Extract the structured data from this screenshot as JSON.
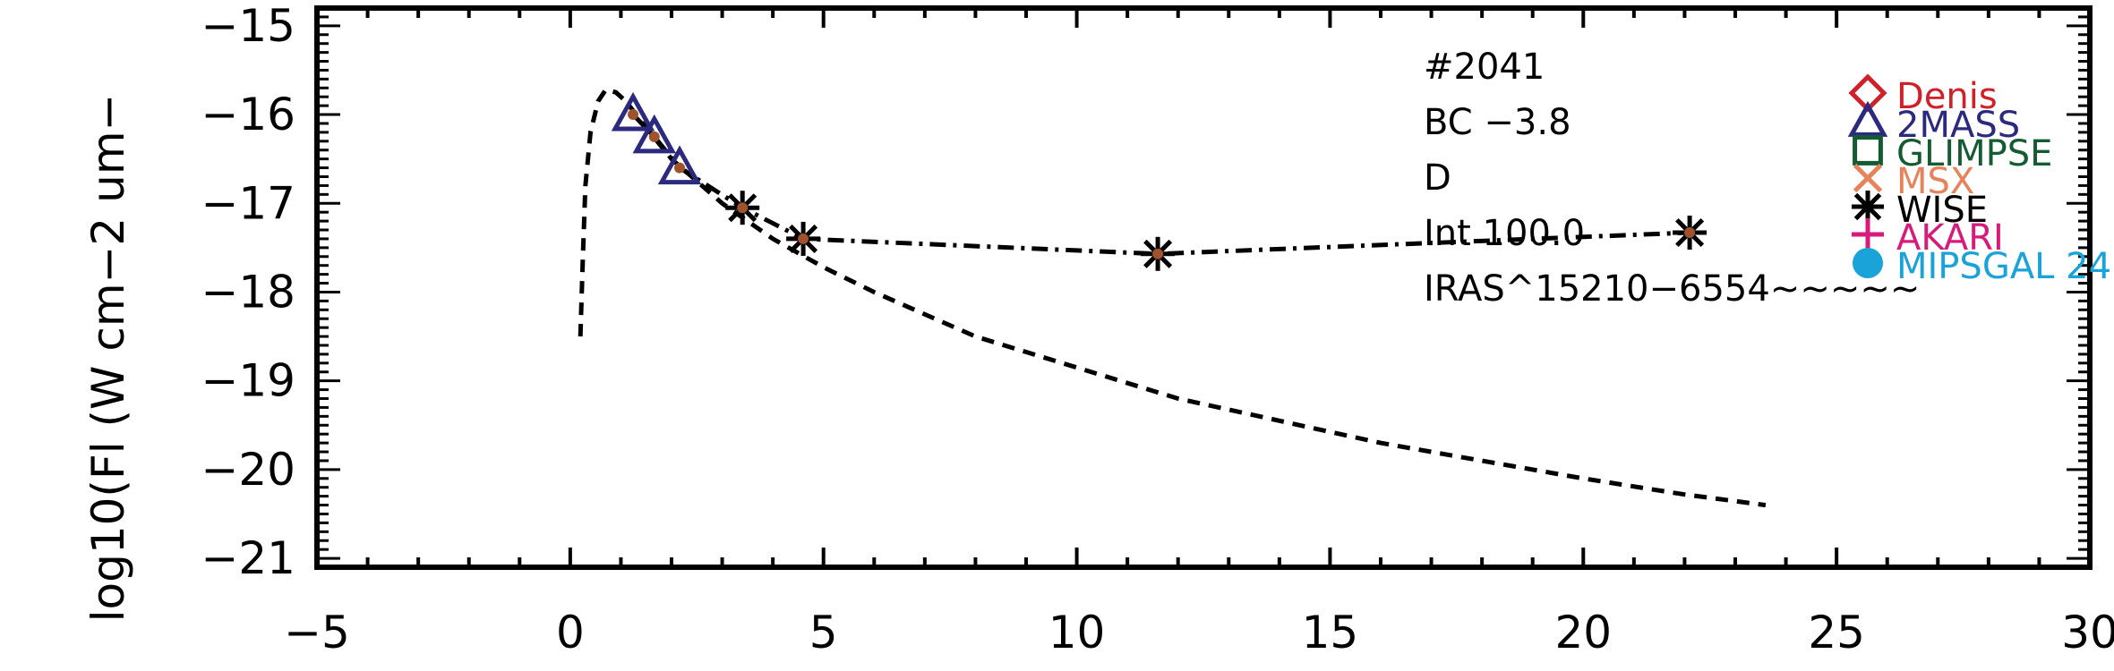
{
  "chart_data": {
    "type": "scatter",
    "ylabel": "log10(Fl (W cm−2 um−",
    "xlim": [
      -5,
      30
    ],
    "ylim": [
      -21.1,
      -14.8
    ],
    "x_ticks": [
      -5,
      0,
      5,
      10,
      15,
      20,
      25,
      30
    ],
    "x_tick_labels": [
      "−5",
      "0",
      "5",
      "10",
      "15",
      "20",
      "25",
      "30"
    ],
    "y_ticks": [
      -21,
      -20,
      -19,
      -18,
      -17,
      -16,
      -15
    ],
    "y_tick_labels": [
      "−21",
      "−20",
      "−19",
      "−18",
      "−17",
      "−16",
      "−15"
    ],
    "annotations": [
      "#2041",
      "BC −3.8",
      "D",
      "Int 100.0",
      "IRAS^15210−6554~~~~~"
    ],
    "legend": [
      {
        "name": "Denis",
        "symbol": "diamond",
        "color": "#d0202a"
      },
      {
        "name": "2MASS",
        "symbol": "triangle",
        "color": "#2b2a7e"
      },
      {
        "name": "GLIMPSE",
        "symbol": "square",
        "color": "#145a32"
      },
      {
        "name": "MSX",
        "symbol": "x",
        "color": "#e8825a"
      },
      {
        "name": "WISE",
        "symbol": "asterisk",
        "color": "#000000"
      },
      {
        "name": "AKARI",
        "symbol": "plus",
        "color": "#d81b7a"
      },
      {
        "name": "MIPSGAL 24",
        "symbol": "circle",
        "color": "#1aa3d9"
      }
    ],
    "series": [
      {
        "name": "2MASS",
        "symbol": "triangle",
        "color": "#2b2a7e",
        "x": [
          1.24,
          1.66,
          2.16
        ],
        "y": [
          -16.0,
          -16.25,
          -16.6
        ]
      },
      {
        "name": "WISE",
        "symbol": "asterisk",
        "color": "#000000",
        "x": [
          3.4,
          4.6,
          11.6,
          22.1
        ],
        "y": [
          -17.05,
          -17.4,
          -17.57,
          -17.33
        ]
      },
      {
        "symbol": "dot",
        "color": "#a0522d",
        "x": [
          1.24,
          1.66,
          2.16,
          3.4,
          4.6,
          11.6,
          22.1
        ],
        "y": [
          -16.0,
          -16.25,
          -16.6,
          -17.05,
          -17.4,
          -17.57,
          -17.33
        ]
      },
      {
        "style": "dash-dot",
        "color": "#000000",
        "x": [
          1.24,
          1.66,
          2.16,
          3.4,
          4.6,
          11.6,
          22.1
        ],
        "y": [
          -16.0,
          -16.25,
          -16.6,
          -17.05,
          -17.4,
          -17.57,
          -17.33
        ]
      },
      {
        "style": "dashed",
        "color": "#000000",
        "x": [
          0.2,
          0.25,
          0.3,
          0.4,
          0.55,
          0.7,
          0.9,
          1.1,
          1.5,
          2.0,
          3.0,
          4.0,
          5.0,
          6.0,
          8.0,
          10.0,
          12.0,
          14.0,
          16.0,
          18.0,
          20.0,
          22.0,
          23.6
        ],
        "y": [
          -18.5,
          -17.6,
          -16.8,
          -16.2,
          -15.85,
          -15.72,
          -15.75,
          -15.85,
          -16.15,
          -16.5,
          -17.0,
          -17.4,
          -17.72,
          -18.0,
          -18.5,
          -18.85,
          -19.2,
          -19.45,
          -19.7,
          -19.9,
          -20.1,
          -20.28,
          -20.4
        ]
      }
    ]
  }
}
